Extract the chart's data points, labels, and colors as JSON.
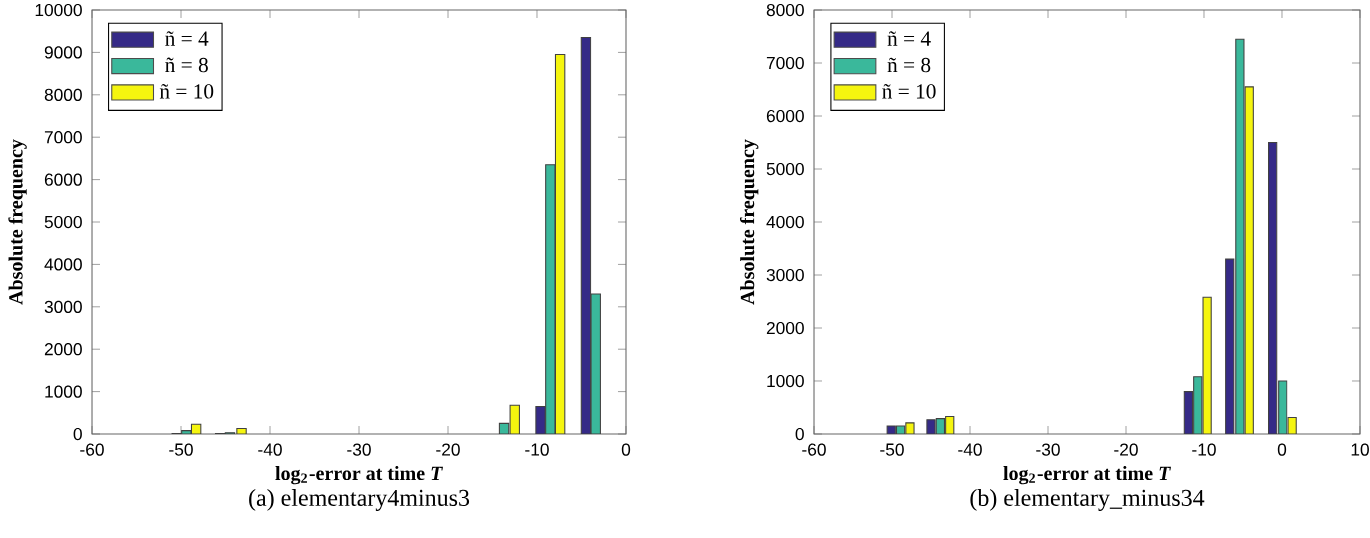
{
  "chart_data": [
    {
      "type": "bar",
      "xlabel": "log$_{2}$-error at time *T*",
      "ylabel": "Absolute frequency",
      "annotations": [
        "(a)  elementary4minus3"
      ],
      "xlim": [
        -60,
        0
      ],
      "ylim": [
        0,
        10000
      ],
      "xticks": [
        -60,
        -50,
        -40,
        -30,
        -20,
        -10,
        0
      ],
      "yticks": [
        0,
        1000,
        2000,
        3000,
        4000,
        5000,
        6000,
        7000,
        8000,
        9000,
        10000
      ],
      "legend": "top left",
      "grid": false,
      "series": [
        {
          "name": "ñ = 4",
          "color": "#352a87",
          "x": [
            -50.5,
            -45.6,
            -9.6,
            -4.5
          ],
          "values": [
            10,
            10,
            650,
            9350
          ]
        },
        {
          "name": "ñ = 8",
          "color": "#3ab89b",
          "x": [
            -49.4,
            -44.5,
            -13.7,
            -8.5,
            -3.4
          ],
          "values": [
            80,
            30,
            250,
            6350,
            3300
          ]
        },
        {
          "name": "ñ = 10",
          "color": "#f5f50f",
          "x": [
            -48.3,
            -43.2,
            -12.5,
            -7.4
          ],
          "values": [
            230,
            130,
            680,
            8950
          ]
        }
      ]
    },
    {
      "type": "bar",
      "xlabel": "log$_{2}$-error at time *T*",
      "ylabel": "Absolute frequency",
      "annotations": [
        "(b)  elementary_minus34"
      ],
      "xlim": [
        -60,
        10
      ],
      "ylim": [
        0,
        8000
      ],
      "xticks": [
        -60,
        -50,
        -40,
        -30,
        -20,
        -10,
        0,
        10
      ],
      "yticks": [
        0,
        1000,
        2000,
        3000,
        4000,
        5000,
        6000,
        7000,
        8000
      ],
      "legend": "top left",
      "grid": false,
      "series": [
        {
          "name": "ñ = 4",
          "color": "#352a87",
          "x": [
            -50.1,
            -45,
            -12,
            -6.7,
            -1.2
          ],
          "values": [
            150,
            270,
            800,
            3300,
            5500
          ]
        },
        {
          "name": "ñ = 8",
          "color": "#3ab89b",
          "x": [
            -48.9,
            -43.8,
            -10.8,
            -5.4,
            0.1
          ],
          "values": [
            150,
            290,
            1080,
            7450,
            1000
          ]
        },
        {
          "name": "ñ = 10",
          "color": "#f5f50f",
          "x": [
            -47.7,
            -42.6,
            -9.6,
            -4.2,
            1.3
          ],
          "values": [
            210,
            330,
            2580,
            6550,
            310
          ]
        }
      ]
    }
  ]
}
